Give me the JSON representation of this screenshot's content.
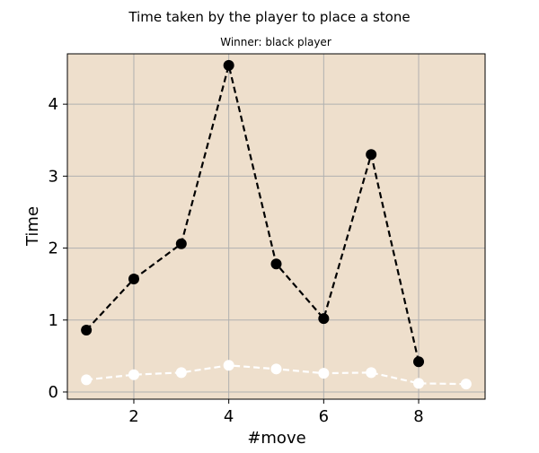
{
  "chart_data": {
    "type": "line",
    "title": "Time taken by the player to place a stone",
    "subtitle": "Winner: black player",
    "xlabel": "#move",
    "ylabel": "Time",
    "xlim": [
      0.6,
      9.4
    ],
    "ylim": [
      -0.1,
      4.7
    ],
    "xticks": [
      2,
      4,
      6,
      8
    ],
    "yticks": [
      0,
      1,
      2,
      3,
      4
    ],
    "grid": true,
    "background_color": "#eedfcc",
    "series": [
      {
        "color": "#000000",
        "line_style": "dashed",
        "x": [
          1,
          2,
          3,
          4,
          5,
          6,
          7,
          8
        ],
        "y": [
          0.86,
          1.57,
          2.06,
          4.54,
          1.78,
          1.02,
          3.3,
          0.42
        ]
      },
      {
        "color": "#ffffff",
        "line_style": "dashed",
        "x": [
          1,
          2,
          3,
          4,
          5,
          6,
          7,
          8,
          9
        ],
        "y": [
          0.17,
          0.24,
          0.27,
          0.37,
          0.32,
          0.26,
          0.27,
          0.12,
          0.11
        ]
      }
    ]
  }
}
